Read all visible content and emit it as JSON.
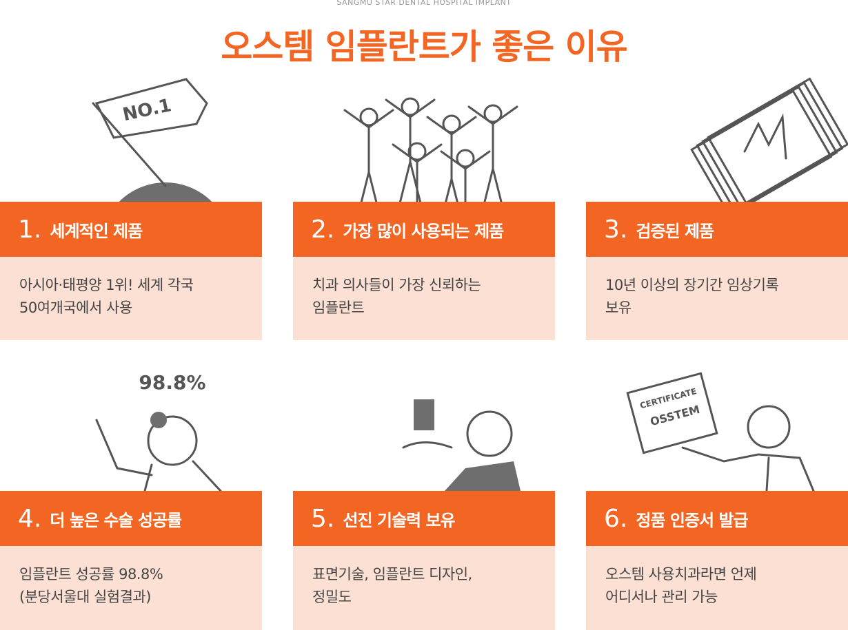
{
  "header": {
    "subtitle": "SANGMU STAR DENTAL HOSPITAL IMPLANT",
    "title": "오스템 임플란트가 좋은 이유"
  },
  "cards": [
    {
      "number": "1.",
      "heading": "세계적인 제품",
      "lines": [
        "아시아·태평양 1위! 세계 각국",
        "50여개국에서 사용"
      ],
      "illustration_labels": [
        "NO.1"
      ]
    },
    {
      "number": "2.",
      "heading": "가장 많이 사용되는 제품",
      "lines": [
        "치과 의사들이 가장 신뢰하는",
        "임플란트"
      ]
    },
    {
      "number": "3.",
      "heading": "검증된 제품",
      "lines": [
        "10년 이상의 장기간 임상기록",
        "보유"
      ]
    },
    {
      "number": "4.",
      "heading": "더 높은 수술 성공률",
      "lines": [
        "임플란트 성공률 98.8%",
        "(분당서울대 실험결과)"
      ],
      "illustration_labels": [
        "98.8%"
      ]
    },
    {
      "number": "5.",
      "heading": "선진 기술력 보유",
      "lines": [
        "표면기술, 임플란트 디자인,",
        "정밀도"
      ]
    },
    {
      "number": "6.",
      "heading": "정품 인증서 발급",
      "lines": [
        "오스템 사용치과라면 언제",
        "어디서나 관리 가능"
      ],
      "illustration_labels": [
        "CERTIFICATE",
        "OSSTEM"
      ]
    }
  ]
}
